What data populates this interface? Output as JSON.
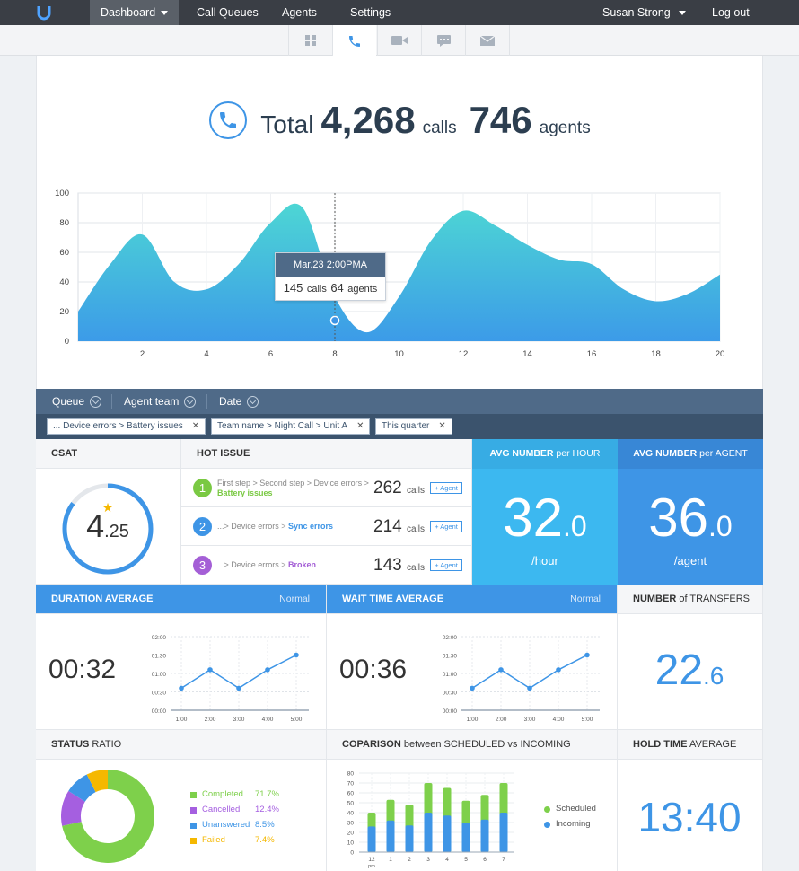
{
  "nav": {
    "items": [
      {
        "label": "Dashboard"
      },
      {
        "label": "Call Queues"
      },
      {
        "label": "Agents"
      },
      {
        "label": "Settings"
      }
    ],
    "user": "Susan Strong",
    "logout": "Log out"
  },
  "icon_tabs": [
    "grid-icon",
    "phone-icon",
    "video-icon",
    "chat-icon",
    "mail-icon"
  ],
  "total": {
    "label": "Total",
    "calls": "4,268",
    "calls_unit": "calls",
    "agents": "746",
    "agents_unit": "agents"
  },
  "chart_data": {
    "type": "area",
    "ylim": [
      0,
      100
    ],
    "yticks": [
      "100",
      "80",
      "60",
      "40",
      "20",
      "0"
    ],
    "xlim": [
      0,
      20
    ],
    "xticks": [
      "2",
      "4",
      "6",
      "8",
      "10",
      "12",
      "14",
      "16",
      "18",
      "20"
    ],
    "x": [
      0,
      1,
      2,
      3,
      4,
      5,
      6,
      7,
      8,
      9,
      10,
      11,
      12,
      13,
      14,
      15,
      16,
      17,
      18,
      19,
      20
    ],
    "y": [
      20,
      52,
      72,
      40,
      35,
      52,
      80,
      90,
      30,
      6,
      30,
      68,
      88,
      78,
      65,
      55,
      52,
      35,
      27,
      32,
      45
    ],
    "grid": true,
    "tooltip": {
      "x": 8,
      "y": 14,
      "title": "Mar.23 2:00PMA",
      "calls": "145",
      "calls_unit": "calls",
      "agents": "64",
      "agents_unit": "agents"
    },
    "colors": {
      "top": "#4dd6d4",
      "bottom": "#3c9be8"
    }
  },
  "filters": {
    "items": [
      "Queue",
      "Agent team",
      "Date"
    ],
    "tags": [
      "... Device errors > Battery issues",
      "Team name > Night Call > Unit A",
      "This quarter"
    ],
    "close": "✕"
  },
  "csat": {
    "title": "CSAT",
    "value_int": "4",
    "value_dec": ".25",
    "fraction": 0.85,
    "star": "★"
  },
  "hot_issue": {
    "title": "HOT ISSUE",
    "items": [
      {
        "num": "1",
        "color": "#7ac943",
        "path": "First step > Second step > Device errors > ",
        "highlight": "Battery issues",
        "count": "262",
        "unit": "calls",
        "btn": "+ Agent"
      },
      {
        "num": "2",
        "color": "#3e95e6",
        "path": "...> Device errors > ",
        "highlight": "Sync errors",
        "count": "214",
        "unit": "calls",
        "btn": "+ Agent"
      },
      {
        "num": "3",
        "color": "#a45fd6",
        "path": "...> Device errors > ",
        "highlight": "Broken",
        "count": "143",
        "unit": "calls",
        "btn": "+ Agent"
      }
    ]
  },
  "avg_hour": {
    "title_b": "AVG NUMBER",
    "title_r": " per HOUR",
    "int": "32",
    "dec": ".0",
    "unit": "/hour"
  },
  "avg_agent": {
    "title_b": "AVG NUMBER",
    "title_r": " per AGENT",
    "int": "36",
    "dec": ".0",
    "unit": "/agent"
  },
  "duration": {
    "title": "DURATION AVERAGE",
    "status": "Normal",
    "value": "00:32"
  },
  "wait": {
    "title": "WAIT TIME AVERAGE",
    "status": "Normal",
    "value": "00:36"
  },
  "mini_chart": {
    "yticks": [
      "02:00",
      "01:30",
      "01:00",
      "00:30",
      "00:00"
    ],
    "xticks": [
      "1:00",
      "2:00",
      "3:00",
      "4:00",
      "5:00"
    ],
    "values": [
      0.6,
      1.1,
      0.6,
      1.1,
      1.5
    ],
    "ymax": 2
  },
  "transfers": {
    "title_b": "NUMBER",
    "title_r": " of TRANSFERS",
    "int": "22",
    "dec": ".6"
  },
  "status_ratio": {
    "title_b": "STATUS",
    "title_r": " RATIO",
    "slices": [
      {
        "label": "Completed",
        "pct": "71.7%",
        "value": 71.7,
        "color": "#7ed04b"
      },
      {
        "label": "Cancelled",
        "pct": "12.4%",
        "value": 12.4,
        "color": "#a55fe0"
      },
      {
        "label": "Unanswered",
        "pct": "8.5%",
        "value": 8.5,
        "color": "#3e95e6"
      },
      {
        "label": "Failed",
        "pct": "7.4%",
        "value": 7.4,
        "color": "#f5b800"
      }
    ]
  },
  "comparison": {
    "title_b": "COPARISON",
    "title_r": " between SCHEDULED vs INCOMING",
    "yticks": [
      "80",
      "70",
      "60",
      "50",
      "40",
      "30",
      "20",
      "10",
      "0"
    ],
    "xticks": [
      "12",
      "1",
      "2",
      "3",
      "4",
      "5",
      "6",
      "7"
    ],
    "xsub": "pm",
    "scheduled": [
      40,
      53,
      48,
      70,
      65,
      52,
      58,
      70
    ],
    "incoming": [
      26,
      32,
      27,
      40,
      37,
      30,
      33,
      40
    ],
    "legend": [
      "Scheduled",
      "Incoming"
    ],
    "colors": {
      "scheduled": "#7ed04b",
      "incoming": "#3e95e6"
    }
  },
  "hold": {
    "title_b": "HOLD TIME",
    "title_r": " AVERAGE",
    "value": "13:40"
  }
}
